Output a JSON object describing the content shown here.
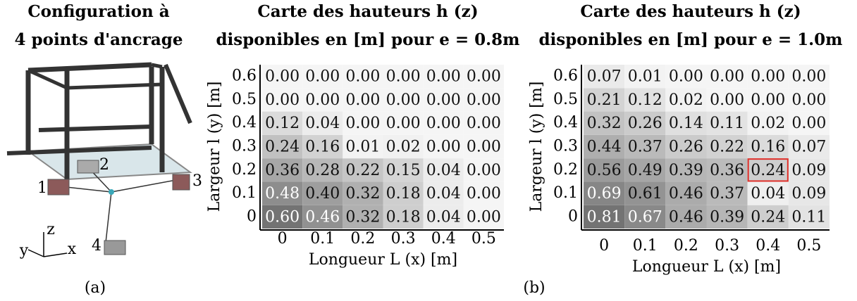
{
  "figure": {
    "config_title": [
      "Configuration à",
      "4 points d'ancrage"
    ],
    "anchor_labels": [
      "1",
      "2",
      "3",
      "4"
    ],
    "axis_labels": [
      "y",
      "z",
      "x"
    ],
    "panel_labels": [
      "(a)",
      "(b)"
    ]
  },
  "chart_data": [
    {
      "type": "heatmap",
      "title": [
        "Carte des hauteurs h (z)",
        "disponibles en [m]  pour e = 0.8m"
      ],
      "xlabel": "Longueur L (x) [m]",
      "ylabel": "Largeur l (y) [m]",
      "colormap": "gray",
      "x": [
        0,
        0.1,
        0.2,
        0.3,
        0.4,
        0.5
      ],
      "y": [
        0,
        0.1,
        0.2,
        0.3,
        0.4,
        0.5,
        0.6
      ],
      "values": [
        [
          0.6,
          0.46,
          0.32,
          0.18,
          0.04,
          0.0
        ],
        [
          0.48,
          0.4,
          0.32,
          0.18,
          0.04,
          0.0
        ],
        [
          0.36,
          0.28,
          0.22,
          0.15,
          0.04,
          0.0
        ],
        [
          0.24,
          0.16,
          0.01,
          0.02,
          0.0,
          0.0
        ],
        [
          0.12,
          0.04,
          0.0,
          0.0,
          0.0,
          0.0
        ],
        [
          0.0,
          0.0,
          0.0,
          0.0,
          0.0,
          0.0
        ],
        [
          0.0,
          0.0,
          0.0,
          0.0,
          0.0,
          0.0
        ]
      ],
      "value_labels": [
        [
          "0.60",
          "0.46",
          "0.32",
          "0.18",
          "0.04",
          "0.00"
        ],
        [
          "0.48",
          "0.40",
          "0.32",
          "0.18",
          "0.04",
          "0.00"
        ],
        [
          "0.36",
          "0.28",
          "0.22",
          "0.15",
          "0.04",
          "0.00"
        ],
        [
          "0.24",
          "0.16",
          "0.01",
          "0.02",
          "0.00",
          "0.00"
        ],
        [
          "0.12",
          "0.04",
          "0.00",
          "0.00",
          "0.00",
          "0.00"
        ],
        [
          "0.00",
          "0.00",
          "0.00",
          "0.00",
          "0.00",
          "0.00"
        ],
        [
          "0.00",
          "0.00",
          "0.00",
          "0.00",
          "0.00",
          "0.00"
        ]
      ]
    },
    {
      "type": "heatmap",
      "title": [
        "Carte des hauteurs  h (z)",
        "disponibles en [m]  pour e = 1.0m"
      ],
      "xlabel": "Longueur L (x) [m]",
      "ylabel": "Largeur l (y) [m]",
      "colormap": "gray",
      "x": [
        0,
        0.1,
        0.2,
        0.3,
        0.4,
        0.5
      ],
      "y": [
        0,
        0.1,
        0.2,
        0.3,
        0.4,
        0.5,
        0.6
      ],
      "values": [
        [
          0.81,
          0.67,
          0.46,
          0.39,
          0.24,
          0.11
        ],
        [
          0.69,
          0.61,
          0.46,
          0.37,
          0.04,
          0.09
        ],
        [
          0.56,
          0.49,
          0.39,
          0.36,
          0.24,
          0.09
        ],
        [
          0.44,
          0.37,
          0.26,
          0.22,
          0.16,
          0.07
        ],
        [
          0.32,
          0.26,
          0.14,
          0.11,
          0.02,
          0.0
        ],
        [
          0.21,
          0.12,
          0.02,
          0.0,
          0.0,
          0.0
        ],
        [
          0.07,
          0.01,
          0.0,
          0.0,
          0.0,
          0.0
        ]
      ],
      "value_labels": [
        [
          "0.81",
          "0.67",
          "0.46",
          "0.39",
          "0.24",
          "0.11"
        ],
        [
          "0.69",
          "0.61",
          "0.46",
          "0.37",
          "0.04",
          "0.09"
        ],
        [
          "0.56",
          "0.49",
          "0.39",
          "0.36",
          "0.24",
          "0.09"
        ],
        [
          "0.44",
          "0.37",
          "0.26",
          "0.22",
          "0.16",
          "0.07"
        ],
        [
          "0.32",
          "0.26",
          "0.14",
          "0.11",
          "0.02",
          "0.00"
        ],
        [
          "0.21",
          "0.12",
          "0.02",
          "0.00",
          "0.00",
          "0.00"
        ],
        [
          "0.07",
          "0.01",
          "0.00",
          "0.00",
          "0.00",
          "0.00"
        ]
      ],
      "highlight": {
        "x": 0.4,
        "y": 0.2
      },
      "highlight_color": "#e0302a"
    }
  ]
}
